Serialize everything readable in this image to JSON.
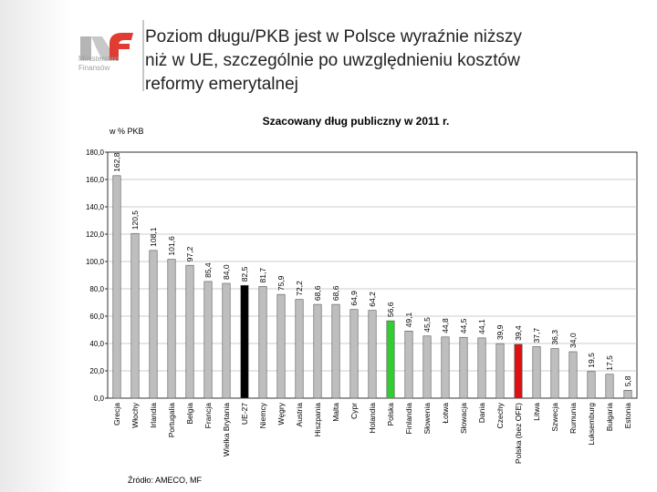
{
  "slide": {
    "title_lines": [
      "Poziom długu/PKB jest w Polsce wyraźnie niższy",
      "niż w UE, szczególnie po uwzględnieniu kosztów",
      "reformy emerytalnej"
    ],
    "logo_text_line1": "Ministerstwo",
    "logo_text_line2": "Finansów",
    "source": "Źródło: AMECO, MF"
  },
  "chart_data": {
    "type": "bar",
    "title": "Szacowany dług publiczny w 2011 r.",
    "ylabel": "w % PKB",
    "xlabel": "",
    "ylim": [
      0,
      180
    ],
    "yticks": [
      "0,0",
      "20,0",
      "40,0",
      "60,0",
      "80,0",
      "100,0",
      "120,0",
      "140,0",
      "160,0",
      "180,0"
    ],
    "grid": true,
    "categories": [
      "Grecja",
      "Włochy",
      "Irlandia",
      "Portugalia",
      "Belgia",
      "Francja",
      "Wielka Brytania",
      "UE-27",
      "Niemcy",
      "Węgry",
      "Austria",
      "Hiszpania",
      "Malta",
      "Cypr",
      "Holandia",
      "Polska",
      "Finlandia",
      "Słowenia",
      "Łotwa",
      "Słowacja",
      "Dania",
      "Czechy",
      "Polska (bez OFE)",
      "Litwa",
      "Szwecja",
      "Rumunia",
      "Luksemburg",
      "Bułgaria",
      "Estonia"
    ],
    "values": [
      162.8,
      120.5,
      108.1,
      101.6,
      97.2,
      85.4,
      84.0,
      82.5,
      81.7,
      75.9,
      72.2,
      68.6,
      68.6,
      64.9,
      64.2,
      56.6,
      49.1,
      45.5,
      44.8,
      44.5,
      44.1,
      39.9,
      39.4,
      37.7,
      36.3,
      34.0,
      19.5,
      17.5,
      5.8
    ],
    "value_labels": [
      "162,8",
      "120,5",
      "108,1",
      "101,6",
      "97,2",
      "85,4",
      "84,0",
      "82,5",
      "81,7",
      "75,9",
      "72,2",
      "68,6",
      "68,6",
      "64,9",
      "64,2",
      "56,6",
      "49,1",
      "45,5",
      "44,8",
      "44,5",
      "44,1",
      "39,9",
      "39,4",
      "37,7",
      "36,3",
      "34,0",
      "19,5",
      "17,5",
      "5,8"
    ],
    "colors": {
      "default": "#bebebe",
      "UE-27": "#000000",
      "Polska": "#33cc33",
      "Polska (bez OFE)": "#dd1111"
    }
  },
  "colors": {
    "logo_red": "#e03c31",
    "logo_gray": "#b5b5b5"
  }
}
